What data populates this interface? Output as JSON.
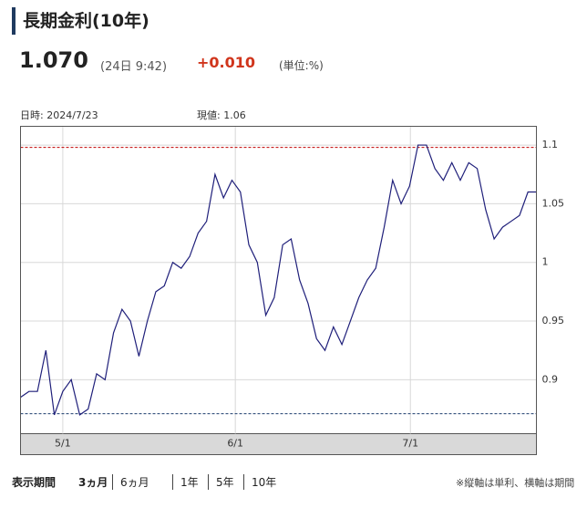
{
  "header": {
    "title": "長期金利(10年)",
    "value": "1.070",
    "time": "(24日 9:42)",
    "change": "+0.010",
    "unit": "(単位:%)"
  },
  "chart_data": {
    "type": "line",
    "info": [
      "日時: 2024/7/23",
      "現値: 1.06"
    ],
    "x": [
      0,
      1,
      2,
      3,
      4,
      5,
      6,
      7,
      8,
      9,
      10,
      11,
      12,
      13,
      14,
      15,
      16,
      17,
      18,
      19,
      20,
      21,
      22,
      23,
      24,
      25,
      26,
      27,
      28,
      29,
      30,
      31,
      32,
      33,
      34,
      35,
      36,
      37,
      38,
      39,
      40,
      41,
      42,
      43,
      44,
      45,
      46,
      47,
      48,
      49,
      50,
      51,
      52,
      53,
      54,
      55,
      56,
      57,
      58,
      59,
      60,
      61
    ],
    "series": [
      {
        "color": "#1f1f7a",
        "values": [
          0.885,
          0.89,
          0.89,
          0.925,
          0.87,
          0.89,
          0.9,
          0.87,
          0.875,
          0.905,
          0.9,
          0.94,
          0.96,
          0.95,
          0.92,
          0.95,
          0.975,
          0.98,
          1.0,
          0.995,
          1.005,
          1.025,
          1.035,
          1.075,
          1.055,
          1.07,
          1.06,
          1.015,
          1.0,
          0.955,
          0.97,
          1.015,
          1.02,
          0.985,
          0.965,
          0.935,
          0.925,
          0.945,
          0.93,
          0.95,
          0.97,
          0.985,
          0.995,
          1.03,
          1.07,
          1.05,
          1.065,
          1.1,
          1.1,
          1.08,
          1.07,
          1.085,
          1.07,
          1.085,
          1.08,
          1.045,
          1.02,
          1.03,
          1.035,
          1.04,
          1.06,
          1.06
        ]
      }
    ],
    "xlim": [
      0,
      61
    ],
    "xticks": [
      {
        "value": 5,
        "label": "5/1"
      },
      {
        "value": 25.4,
        "label": "6/1"
      },
      {
        "value": 46.1,
        "label": "7/1"
      }
    ],
    "ylim": [
      0.854,
      1.116
    ],
    "yticks": [
      0.9,
      0.95,
      1,
      1.05,
      1.1
    ],
    "max_line": {
      "value": 1.098,
      "color": "#c00000"
    },
    "min_line": {
      "value": 0.871,
      "color": "#1f3f6f"
    },
    "grid": true
  },
  "footer": {
    "label": "表示期間",
    "periods": [
      "3ヵ月",
      "6ヵ月",
      "1年",
      "5年",
      "10年"
    ],
    "note": "※縦軸は単利、横軸は期間"
  }
}
